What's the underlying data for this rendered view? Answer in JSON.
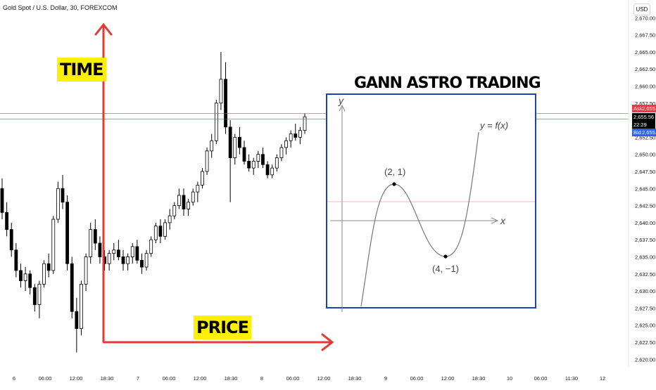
{
  "header": {
    "symbol_title": "Gold Spot / U.S. Dollar, 30, FOREXCOM",
    "currency_button": "USD"
  },
  "annotations": {
    "time_label": "TIME",
    "price_label": "PRICE",
    "gann_title": "GANN ASTRO TRADING",
    "arrow_color": "#e53935",
    "box_color": "#1e3fbf",
    "label_bg": "#fff000"
  },
  "inset": {
    "y_axis": "y",
    "x_axis": "x",
    "function_label": "y = f(x)",
    "max_label": "(2, 1)",
    "min_label": "(4, −1)"
  },
  "price_tags": {
    "ask_name": "Ask",
    "ask_value": "2,655.99",
    "last_value": "2,655.56",
    "countdown": "22:29",
    "bid_name": "Bid",
    "bid_value": "2,655.17"
  },
  "colors": {
    "up": "#ffffff",
    "down": "#000000",
    "ask_line": "#f23645",
    "bid_line": "#2962ff"
  },
  "chart_data": {
    "type": "candlestick",
    "title": "Gold Spot / U.S. Dollar, 30, FOREXCOM",
    "y_ticks": [
      "2,670.00",
      "2,667.50",
      "2,665.00",
      "2,662.50",
      "2,660.00",
      "2,657.50",
      "2,655.00",
      "2,652.50",
      "2,650.00",
      "2,647.50",
      "2,645.00",
      "2,642.50",
      "2,640.00",
      "2,637.50",
      "2,635.00",
      "2,632.50",
      "2,630.00",
      "2,627.50",
      "2,625.00",
      "2,622.50",
      "2,620.00"
    ],
    "y_tick_values": [
      2670,
      2667.5,
      2665,
      2662.5,
      2660,
      2657.5,
      2655,
      2652.5,
      2650,
      2647.5,
      2645,
      2642.5,
      2640,
      2637.5,
      2635,
      2632.5,
      2630,
      2627.5,
      2625,
      2622.5,
      2620
    ],
    "x_ticks": [
      "6",
      "06:00",
      "12:00",
      "18:30",
      "7",
      "06:00",
      "12:00",
      "18:30",
      "8",
      "06:00",
      "12:00",
      "18:30",
      "9",
      "06:00",
      "12:00",
      "18:30",
      "10",
      "06:00",
      "11:30",
      "12"
    ],
    "ylim": [
      2618.9,
      2672.6
    ],
    "ask": 2655.99,
    "bid": 2655.17,
    "last": 2655.56,
    "candles": [
      [
        2645.0,
        2646.5,
        2640.5,
        2641.5
      ],
      [
        2641.5,
        2643.0,
        2638.0,
        2639.0
      ],
      [
        2639.0,
        2640.0,
        2635.0,
        2636.0
      ],
      [
        2636.0,
        2637.0,
        2632.0,
        2633.0
      ],
      [
        2633.0,
        2634.0,
        2630.5,
        2631.5
      ],
      [
        2631.5,
        2633.5,
        2630.0,
        2632.5
      ],
      [
        2632.5,
        2633.0,
        2629.5,
        2630.5
      ],
      [
        2630.5,
        2631.0,
        2627.0,
        2628.0
      ],
      [
        2628.0,
        2631.5,
        2626.0,
        2631.0
      ],
      [
        2631.0,
        2634.5,
        2630.5,
        2634.0
      ],
      [
        2634.0,
        2635.5,
        2632.0,
        2633.0
      ],
      [
        2633.0,
        2641.0,
        2632.5,
        2640.5
      ],
      [
        2640.5,
        2646.0,
        2640.0,
        2645.0
      ],
      [
        2645.0,
        2647.0,
        2642.0,
        2643.0
      ],
      [
        2643.0,
        2644.0,
        2633.0,
        2634.0
      ],
      [
        2634.0,
        2635.0,
        2626.0,
        2627.0
      ],
      [
        2627.0,
        2629.0,
        2621.0,
        2624.5
      ],
      [
        2624.5,
        2631.5,
        2623.5,
        2631.0
      ],
      [
        2631.0,
        2635.5,
        2630.0,
        2635.0
      ],
      [
        2635.0,
        2640.0,
        2634.0,
        2639.0
      ],
      [
        2639.0,
        2640.5,
        2636.0,
        2637.0
      ],
      [
        2637.0,
        2638.0,
        2634.0,
        2635.0
      ],
      [
        2635.0,
        2636.0,
        2633.0,
        2634.0
      ],
      [
        2634.0,
        2636.0,
        2633.0,
        2635.5
      ],
      [
        2635.5,
        2637.0,
        2634.5,
        2636.0
      ],
      [
        2636.0,
        2637.5,
        2634.5,
        2635.0
      ],
      [
        2635.0,
        2636.0,
        2633.0,
        2634.0
      ],
      [
        2634.0,
        2635.5,
        2633.0,
        2635.0
      ],
      [
        2635.0,
        2637.0,
        2634.0,
        2636.5
      ],
      [
        2636.5,
        2637.5,
        2634.0,
        2634.5
      ],
      [
        2634.5,
        2635.5,
        2632.5,
        2633.5
      ],
      [
        2633.5,
        2636.0,
        2633.0,
        2635.5
      ],
      [
        2635.5,
        2638.0,
        2635.0,
        2637.5
      ],
      [
        2637.5,
        2640.0,
        2637.0,
        2639.5
      ],
      [
        2639.5,
        2640.5,
        2637.0,
        2638.0
      ],
      [
        2638.0,
        2640.5,
        2637.5,
        2640.0
      ],
      [
        2640.0,
        2642.0,
        2639.0,
        2641.0
      ],
      [
        2641.0,
        2643.0,
        2640.5,
        2642.5
      ],
      [
        2642.5,
        2645.0,
        2642.0,
        2644.0
      ],
      [
        2644.0,
        2645.0,
        2641.0,
        2642.0
      ],
      [
        2642.0,
        2643.5,
        2641.0,
        2643.0
      ],
      [
        2643.0,
        2645.0,
        2642.5,
        2644.5
      ],
      [
        2644.5,
        2646.0,
        2643.0,
        2645.5
      ],
      [
        2645.5,
        2648.0,
        2645.0,
        2647.5
      ],
      [
        2647.5,
        2651.0,
        2647.0,
        2650.5
      ],
      [
        2650.5,
        2653.0,
        2649.5,
        2652.0
      ],
      [
        2652.0,
        2658.0,
        2651.5,
        2657.5
      ],
      [
        2657.5,
        2665.0,
        2656.5,
        2661.0
      ],
      [
        2661.0,
        2663.5,
        2653.0,
        2654.0
      ],
      [
        2654.0,
        2655.0,
        2643.0,
        2649.5
      ],
      [
        2649.5,
        2653.0,
        2648.5,
        2652.5
      ],
      [
        2652.5,
        2654.0,
        2650.0,
        2651.0
      ],
      [
        2651.0,
        2652.0,
        2648.5,
        2649.0
      ],
      [
        2649.0,
        2650.0,
        2647.5,
        2648.0
      ],
      [
        2648.0,
        2649.5,
        2647.0,
        2649.0
      ],
      [
        2649.0,
        2650.5,
        2648.0,
        2650.0
      ],
      [
        2650.0,
        2651.0,
        2648.0,
        2648.5
      ],
      [
        2648.5,
        2649.0,
        2646.5,
        2647.0
      ],
      [
        2647.0,
        2648.5,
        2646.5,
        2648.0
      ],
      [
        2648.0,
        2650.0,
        2647.5,
        2649.5
      ],
      [
        2649.5,
        2651.5,
        2649.0,
        2651.0
      ],
      [
        2651.0,
        2652.5,
        2650.0,
        2652.0
      ],
      [
        2652.0,
        2653.5,
        2651.0,
        2653.0
      ],
      [
        2653.0,
        2654.5,
        2652.0,
        2652.5
      ],
      [
        2652.5,
        2654.0,
        2651.5,
        2653.5
      ],
      [
        2653.5,
        2656.0,
        2653.0,
        2655.5
      ]
    ]
  }
}
